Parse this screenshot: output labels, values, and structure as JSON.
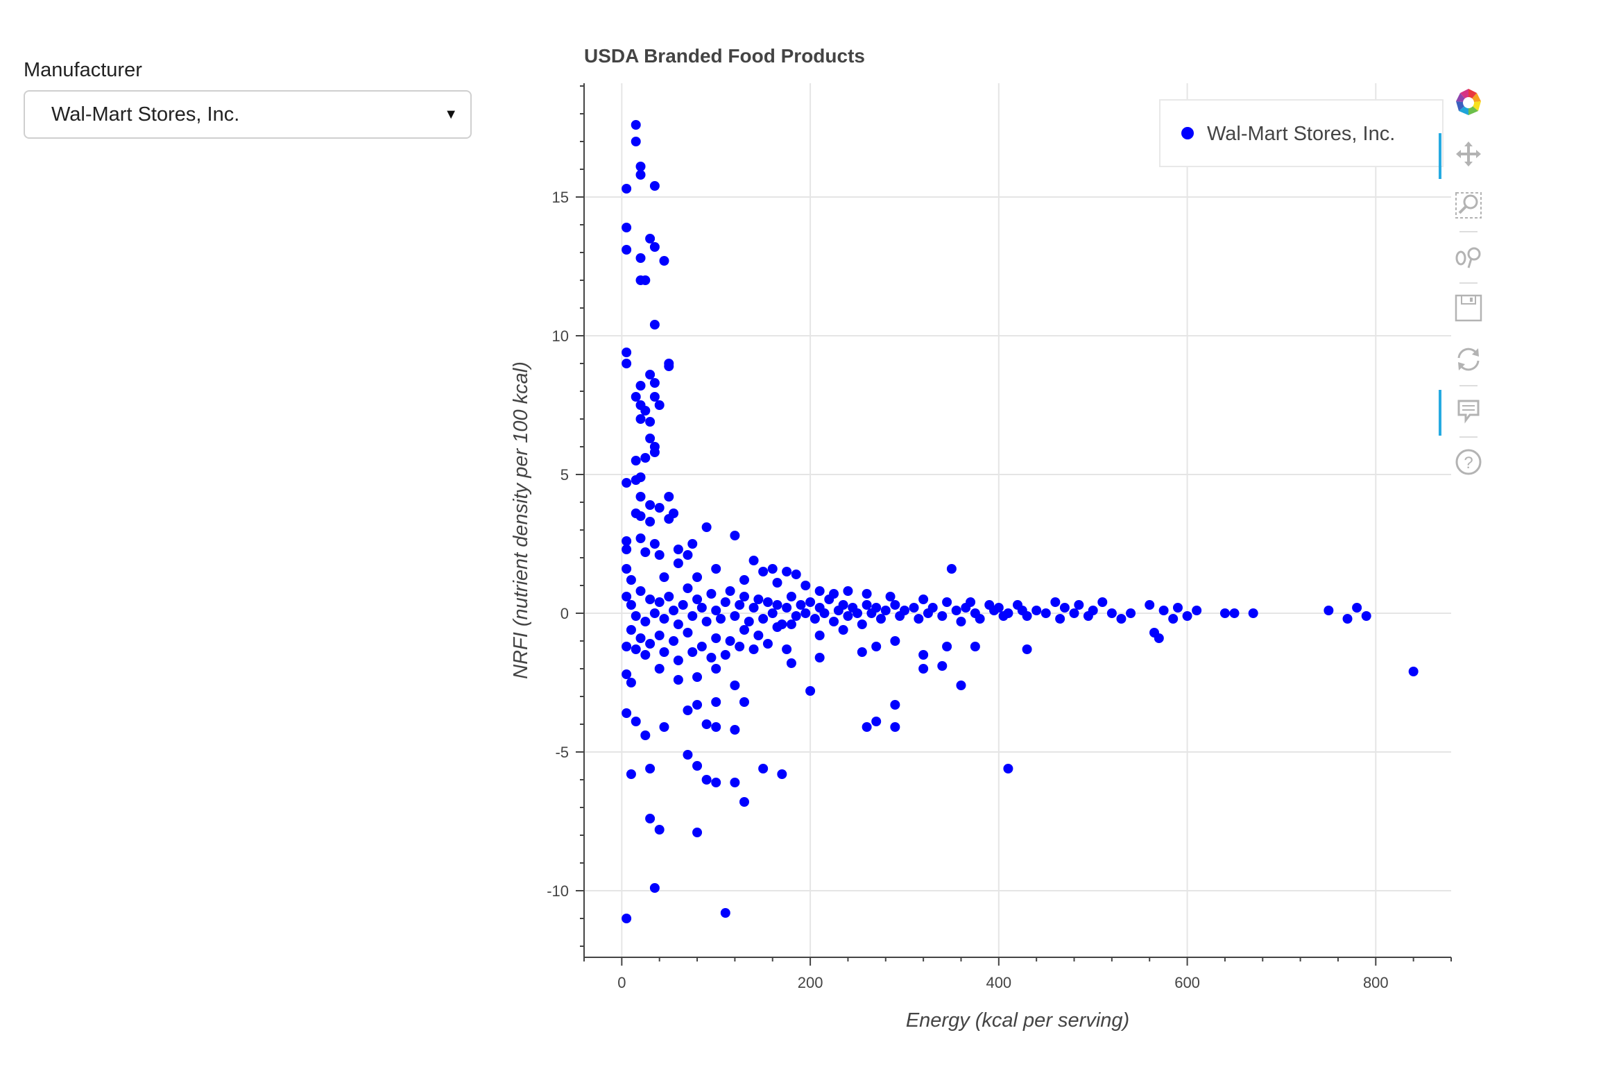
{
  "widget": {
    "label": "Manufacturer",
    "selected": "Wal-Mart Stores, Inc.",
    "arrow": "▼"
  },
  "toolbar": {
    "tools": [
      "bokeh-logo-icon",
      "pan-icon",
      "box-zoom-icon",
      "wheel-zoom-icon",
      "save-icon",
      "reset-icon",
      "hover-icon",
      "help-icon"
    ]
  },
  "colors": {
    "points": "#0000ff",
    "grid": "#e5e5e5",
    "axis": "#444444",
    "title": "#444444",
    "accent": "#26aae1"
  },
  "chart_data": {
    "type": "scatter",
    "title": "USDA Branded Food Products",
    "xlabel": "Energy (kcal per serving)",
    "ylabel": "NRFI (nutrient density per 100 kcal)",
    "xlim": [
      -40,
      880
    ],
    "ylim": [
      -12.4,
      19.1
    ],
    "xticks": [
      0,
      200,
      400,
      600,
      800
    ],
    "yticks": [
      -10,
      -5,
      0,
      5,
      10,
      15
    ],
    "grid": true,
    "legend_position": "top-right",
    "series": [
      {
        "name": "Wal-Mart Stores, Inc.",
        "color": "#0000ff",
        "points": [
          [
            15,
            17.6
          ],
          [
            15,
            17.0
          ],
          [
            20,
            16.1
          ],
          [
            20,
            15.8
          ],
          [
            35,
            15.4
          ],
          [
            5,
            15.3
          ],
          [
            5,
            13.9
          ],
          [
            30,
            13.5
          ],
          [
            35,
            13.2
          ],
          [
            5,
            13.1
          ],
          [
            20,
            12.8
          ],
          [
            45,
            12.7
          ],
          [
            20,
            12.0
          ],
          [
            25,
            12.0
          ],
          [
            35,
            10.4
          ],
          [
            5,
            9.4
          ],
          [
            5,
            9.0
          ],
          [
            50,
            9.0
          ],
          [
            50,
            8.9
          ],
          [
            30,
            8.6
          ],
          [
            35,
            8.3
          ],
          [
            20,
            8.2
          ],
          [
            15,
            7.8
          ],
          [
            20,
            7.5
          ],
          [
            35,
            7.8
          ],
          [
            40,
            7.5
          ],
          [
            25,
            7.3
          ],
          [
            20,
            7.0
          ],
          [
            30,
            6.9
          ],
          [
            30,
            6.3
          ],
          [
            35,
            6.0
          ],
          [
            35,
            5.8
          ],
          [
            15,
            5.5
          ],
          [
            25,
            5.6
          ],
          [
            20,
            4.9
          ],
          [
            5,
            4.7
          ],
          [
            15,
            4.8
          ],
          [
            20,
            4.2
          ],
          [
            50,
            4.2
          ],
          [
            30,
            3.9
          ],
          [
            40,
            3.8
          ],
          [
            15,
            3.6
          ],
          [
            20,
            3.5
          ],
          [
            30,
            3.3
          ],
          [
            55,
            3.6
          ],
          [
            50,
            3.4
          ],
          [
            90,
            3.1
          ],
          [
            120,
            2.8
          ],
          [
            5,
            2.6
          ],
          [
            20,
            2.7
          ],
          [
            35,
            2.5
          ],
          [
            5,
            2.3
          ],
          [
            25,
            2.2
          ],
          [
            60,
            2.3
          ],
          [
            75,
            2.5
          ],
          [
            40,
            2.1
          ],
          [
            70,
            2.1
          ],
          [
            140,
            1.9
          ],
          [
            5,
            1.6
          ],
          [
            60,
            1.8
          ],
          [
            100,
            1.6
          ],
          [
            150,
            1.5
          ],
          [
            160,
            1.6
          ],
          [
            175,
            1.5
          ],
          [
            185,
            1.4
          ],
          [
            350,
            1.6
          ],
          [
            10,
            1.2
          ],
          [
            45,
            1.3
          ],
          [
            80,
            1.3
          ],
          [
            130,
            1.2
          ],
          [
            165,
            1.1
          ],
          [
            195,
            1.0
          ],
          [
            210,
            0.8
          ],
          [
            225,
            0.7
          ],
          [
            240,
            0.8
          ],
          [
            260,
            0.7
          ],
          [
            285,
            0.6
          ],
          [
            320,
            0.5
          ],
          [
            345,
            0.4
          ],
          [
            370,
            0.4
          ],
          [
            390,
            0.3
          ],
          [
            420,
            0.3
          ],
          [
            460,
            0.4
          ],
          [
            485,
            0.3
          ],
          [
            510,
            0.4
          ],
          [
            560,
            0.3
          ],
          [
            575,
            0.1
          ],
          [
            590,
            0.2
          ],
          [
            610,
            0.1
          ],
          [
            640,
            0.0
          ],
          [
            650,
            0.0
          ],
          [
            670,
            0.0
          ],
          [
            750,
            0.1
          ],
          [
            780,
            0.2
          ],
          [
            770,
            -0.2
          ],
          [
            790,
            -0.1
          ],
          [
            5,
            0.6
          ],
          [
            10,
            0.3
          ],
          [
            15,
            -0.1
          ],
          [
            20,
            0.8
          ],
          [
            25,
            -0.3
          ],
          [
            30,
            0.5
          ],
          [
            35,
            0.0
          ],
          [
            40,
            0.4
          ],
          [
            45,
            -0.2
          ],
          [
            50,
            0.6
          ],
          [
            55,
            0.1
          ],
          [
            60,
            -0.4
          ],
          [
            65,
            0.3
          ],
          [
            70,
            0.9
          ],
          [
            75,
            -0.1
          ],
          [
            80,
            0.5
          ],
          [
            85,
            0.2
          ],
          [
            90,
            -0.3
          ],
          [
            95,
            0.7
          ],
          [
            100,
            0.1
          ],
          [
            105,
            -0.2
          ],
          [
            110,
            0.4
          ],
          [
            115,
            0.8
          ],
          [
            120,
            -0.1
          ],
          [
            125,
            0.3
          ],
          [
            130,
            0.6
          ],
          [
            135,
            -0.3
          ],
          [
            140,
            0.2
          ],
          [
            145,
            0.5
          ],
          [
            150,
            -0.2
          ],
          [
            155,
            0.4
          ],
          [
            160,
            0.0
          ],
          [
            165,
            0.3
          ],
          [
            170,
            -0.4
          ],
          [
            175,
            0.2
          ],
          [
            180,
            0.6
          ],
          [
            185,
            -0.1
          ],
          [
            190,
            0.3
          ],
          [
            195,
            0.0
          ],
          [
            200,
            0.4
          ],
          [
            205,
            -0.2
          ],
          [
            210,
            0.2
          ],
          [
            215,
            0.0
          ],
          [
            220,
            0.5
          ],
          [
            225,
            -0.3
          ],
          [
            230,
            0.1
          ],
          [
            235,
            0.3
          ],
          [
            240,
            -0.1
          ],
          [
            245,
            0.2
          ],
          [
            250,
            0.0
          ],
          [
            255,
            -0.4
          ],
          [
            260,
            0.3
          ],
          [
            265,
            0.0
          ],
          [
            270,
            0.2
          ],
          [
            275,
            -0.2
          ],
          [
            280,
            0.1
          ],
          [
            290,
            0.3
          ],
          [
            295,
            -0.1
          ],
          [
            300,
            0.1
          ],
          [
            310,
            0.2
          ],
          [
            315,
            -0.2
          ],
          [
            325,
            0.0
          ],
          [
            330,
            0.2
          ],
          [
            340,
            -0.1
          ],
          [
            355,
            0.1
          ],
          [
            360,
            -0.3
          ],
          [
            365,
            0.2
          ],
          [
            375,
            0.0
          ],
          [
            380,
            -0.2
          ],
          [
            395,
            0.1
          ],
          [
            400,
            0.2
          ],
          [
            405,
            -0.1
          ],
          [
            410,
            0.0
          ],
          [
            425,
            0.1
          ],
          [
            430,
            -0.1
          ],
          [
            440,
            0.1
          ],
          [
            450,
            0.0
          ],
          [
            465,
            -0.2
          ],
          [
            470,
            0.2
          ],
          [
            480,
            0.0
          ],
          [
            495,
            -0.1
          ],
          [
            500,
            0.1
          ],
          [
            520,
            0.0
          ],
          [
            530,
            -0.2
          ],
          [
            540,
            0.0
          ],
          [
            565,
            -0.7
          ],
          [
            585,
            -0.2
          ],
          [
            600,
            -0.1
          ],
          [
            10,
            -0.6
          ],
          [
            20,
            -0.9
          ],
          [
            30,
            -1.1
          ],
          [
            40,
            -0.8
          ],
          [
            55,
            -1.0
          ],
          [
            70,
            -0.7
          ],
          [
            85,
            -1.2
          ],
          [
            100,
            -0.9
          ],
          [
            115,
            -1.0
          ],
          [
            130,
            -0.6
          ],
          [
            145,
            -0.8
          ],
          [
            165,
            -0.5
          ],
          [
            180,
            -0.4
          ],
          [
            210,
            -0.8
          ],
          [
            235,
            -0.6
          ],
          [
            5,
            -1.2
          ],
          [
            25,
            -1.5
          ],
          [
            15,
            -1.3
          ],
          [
            45,
            -1.4
          ],
          [
            60,
            -1.7
          ],
          [
            75,
            -1.4
          ],
          [
            95,
            -1.6
          ],
          [
            110,
            -1.5
          ],
          [
            125,
            -1.2
          ],
          [
            140,
            -1.3
          ],
          [
            155,
            -1.1
          ],
          [
            175,
            -1.3
          ],
          [
            210,
            -1.6
          ],
          [
            255,
            -1.4
          ],
          [
            270,
            -1.2
          ],
          [
            290,
            -1.0
          ],
          [
            320,
            -1.5
          ],
          [
            345,
            -1.2
          ],
          [
            375,
            -1.2
          ],
          [
            430,
            -1.3
          ],
          [
            570,
            -0.9
          ],
          [
            40,
            -2.0
          ],
          [
            5,
            -2.2
          ],
          [
            10,
            -2.5
          ],
          [
            60,
            -2.4
          ],
          [
            80,
            -2.3
          ],
          [
            100,
            -2.0
          ],
          [
            120,
            -2.6
          ],
          [
            180,
            -1.8
          ],
          [
            320,
            -2.0
          ],
          [
            340,
            -1.9
          ],
          [
            360,
            -2.6
          ],
          [
            5,
            -3.6
          ],
          [
            80,
            -3.3
          ],
          [
            70,
            -3.5
          ],
          [
            100,
            -3.2
          ],
          [
            130,
            -3.2
          ],
          [
            200,
            -2.8
          ],
          [
            290,
            -3.3
          ],
          [
            15,
            -3.9
          ],
          [
            45,
            -4.1
          ],
          [
            90,
            -4.0
          ],
          [
            100,
            -4.1
          ],
          [
            120,
            -4.2
          ],
          [
            260,
            -4.1
          ],
          [
            270,
            -3.9
          ],
          [
            290,
            -4.1
          ],
          [
            840,
            -2.1
          ],
          [
            25,
            -4.4
          ],
          [
            10,
            -5.8
          ],
          [
            30,
            -5.6
          ],
          [
            70,
            -5.1
          ],
          [
            80,
            -5.5
          ],
          [
            90,
            -6.0
          ],
          [
            100,
            -6.1
          ],
          [
            120,
            -6.1
          ],
          [
            150,
            -5.6
          ],
          [
            170,
            -5.8
          ],
          [
            410,
            -5.6
          ],
          [
            130,
            -6.8
          ],
          [
            30,
            -7.4
          ],
          [
            40,
            -7.8
          ],
          [
            80,
            -7.9
          ],
          [
            35,
            -9.9
          ],
          [
            5,
            -11.0
          ],
          [
            110,
            -10.8
          ]
        ]
      }
    ]
  }
}
